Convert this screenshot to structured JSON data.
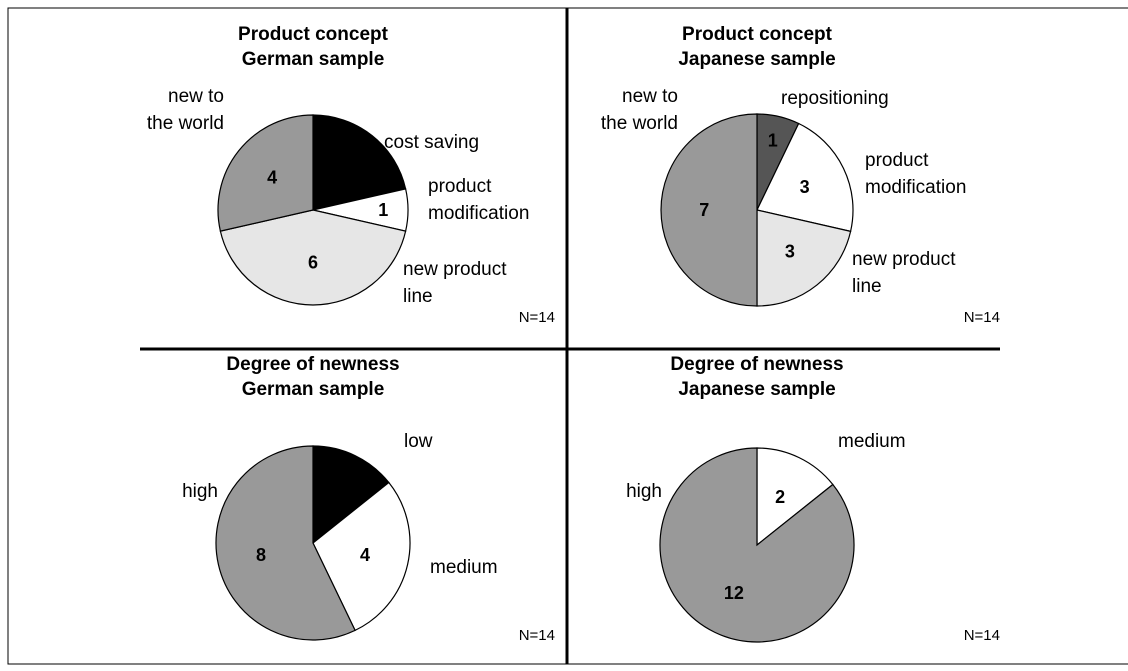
{
  "chart_data": [
    {
      "type": "pie",
      "title": "Product concept",
      "subtitle": "German sample",
      "categories": [
        "cost saving",
        "product modification",
        "new product line",
        "new to the world"
      ],
      "values": [
        3,
        1,
        6,
        4
      ],
      "colors": [
        "#000000",
        "#ffffff",
        "#e6e6e6",
        "#999999"
      ],
      "note": "N=14"
    },
    {
      "type": "pie",
      "title": "Product concept",
      "subtitle": "Japanese sample",
      "categories": [
        "repositioning",
        "product modification",
        "new product line",
        "new to the world"
      ],
      "values": [
        1,
        3,
        3,
        7
      ],
      "colors": [
        "#555555",
        "#ffffff",
        "#e6e6e6",
        "#999999"
      ],
      "note": "N=14"
    },
    {
      "type": "pie",
      "title": "Degree of newness",
      "subtitle": "German sample",
      "categories": [
        "low",
        "medium",
        "high"
      ],
      "values": [
        2,
        4,
        8
      ],
      "colors": [
        "#000000",
        "#ffffff",
        "#999999"
      ],
      "note": "N=14"
    },
    {
      "type": "pie",
      "title": "Degree of newness",
      "subtitle": "Japanese sample",
      "categories": [
        "medium",
        "high"
      ],
      "values": [
        2,
        12
      ],
      "colors": [
        "#ffffff",
        "#999999"
      ],
      "note": "N=14"
    }
  ]
}
